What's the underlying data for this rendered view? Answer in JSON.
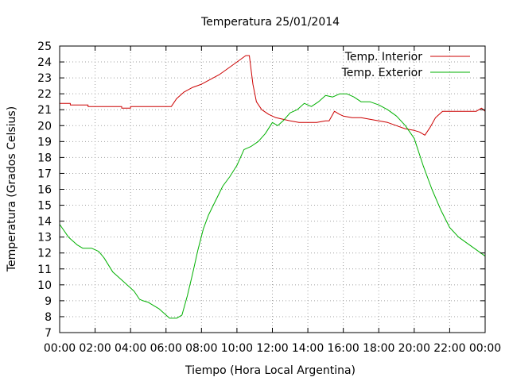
{
  "chart_data": {
    "type": "line",
    "title": "Temperatura 25/01/2014",
    "xlabel": "Tiempo (Hora Local Argentina)",
    "ylabel": "Temperatura (Grados Celsius)",
    "xlim": [
      0,
      24
    ],
    "ylim": [
      7,
      25
    ],
    "x_ticks": [
      "00:00",
      "02:00",
      "04:00",
      "06:00",
      "08:00",
      "10:00",
      "12:00",
      "14:00",
      "16:00",
      "18:00",
      "20:00",
      "22:00",
      "00:00"
    ],
    "y_ticks": [
      "7",
      "8",
      "9",
      "10",
      "11",
      "12",
      "13",
      "14",
      "15",
      "16",
      "17",
      "18",
      "19",
      "20",
      "21",
      "22",
      "23",
      "24",
      "25"
    ],
    "grid": true,
    "legend_position": "top-right",
    "series": [
      {
        "name": "Temp. Interior",
        "color": "#cc0000",
        "x": [
          0,
          0.6,
          0.6,
          1.6,
          1.6,
          3.5,
          3.5,
          4.0,
          4.0,
          6.3,
          6.6,
          7.0,
          7.5,
          8.0,
          8.5,
          9.0,
          9.5,
          10.0,
          10.5,
          10.7,
          10.9,
          11.1,
          11.4,
          11.8,
          12.2,
          12.6,
          13.0,
          13.5,
          14.0,
          14.5,
          15.0,
          15.2,
          15.5,
          15.8,
          16.0,
          16.5,
          17.0,
          17.5,
          18.0,
          18.5,
          19.0,
          19.5,
          20.0,
          20.3,
          20.6,
          20.9,
          21.2,
          21.6,
          22.0,
          22.5,
          23.0,
          23.5,
          23.8,
          24.0
        ],
        "y": [
          21.4,
          21.4,
          21.3,
          21.3,
          21.2,
          21.2,
          21.1,
          21.1,
          21.2,
          21.2,
          21.7,
          22.1,
          22.4,
          22.6,
          22.9,
          23.2,
          23.6,
          24.0,
          24.4,
          24.4,
          22.6,
          21.5,
          21.0,
          20.7,
          20.5,
          20.4,
          20.3,
          20.2,
          20.2,
          20.2,
          20.3,
          20.3,
          20.9,
          20.7,
          20.6,
          20.5,
          20.5,
          20.4,
          20.3,
          20.2,
          20.0,
          19.8,
          19.7,
          19.6,
          19.4,
          19.9,
          20.5,
          20.9,
          20.9,
          20.9,
          20.9,
          20.9,
          21.1,
          20.9
        ]
      },
      {
        "name": "Temp. Exterior",
        "color": "#00b000",
        "x": [
          0,
          0.5,
          1.0,
          1.3,
          1.8,
          2.2,
          2.5,
          3.0,
          3.3,
          3.8,
          4.2,
          4.5,
          4.7,
          5.0,
          5.3,
          5.6,
          5.9,
          6.2,
          6.6,
          6.9,
          7.2,
          7.5,
          7.8,
          8.1,
          8.4,
          8.8,
          9.2,
          9.6,
          10.0,
          10.4,
          10.8,
          11.2,
          11.6,
          12.0,
          12.3,
          12.6,
          13.0,
          13.4,
          13.8,
          14.2,
          14.6,
          15.0,
          15.4,
          15.8,
          16.2,
          16.6,
          17.0,
          17.5,
          18.0,
          18.5,
          19.0,
          19.5,
          20.0,
          20.5,
          21.0,
          21.5,
          22.0,
          22.5,
          23.0,
          23.5,
          24.0
        ],
        "y": [
          13.8,
          13.0,
          12.5,
          12.3,
          12.3,
          12.1,
          11.7,
          10.8,
          10.5,
          10.0,
          9.6,
          9.1,
          9.0,
          8.9,
          8.7,
          8.5,
          8.2,
          7.9,
          7.9,
          8.1,
          9.3,
          10.7,
          12.2,
          13.5,
          14.4,
          15.3,
          16.2,
          16.8,
          17.5,
          18.5,
          18.7,
          19.0,
          19.5,
          20.2,
          20.0,
          20.3,
          20.8,
          21.0,
          21.4,
          21.2,
          21.5,
          21.9,
          21.8,
          22.0,
          22.0,
          21.8,
          21.5,
          21.5,
          21.3,
          21.0,
          20.6,
          20.0,
          19.2,
          17.5,
          16.0,
          14.7,
          13.6,
          13.0,
          12.6,
          12.2,
          11.8
        ]
      }
    ]
  }
}
